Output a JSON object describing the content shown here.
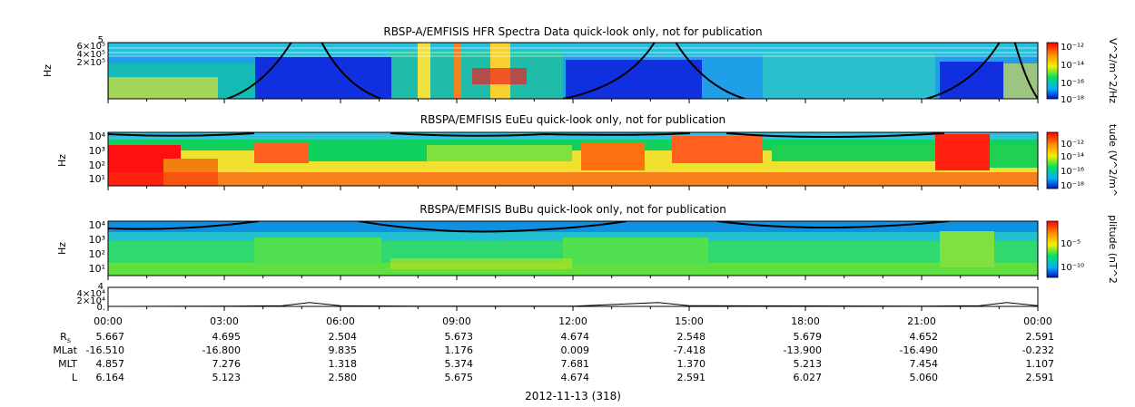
{
  "chart_data": [
    {
      "type": "heatmap",
      "title": "RBSP-A/EMFISIS  HFR Spectra Data quick-look only, not for publication",
      "ylabel": "Hz",
      "ytick_labels": [
        "6×10⁵",
        "4×10⁵",
        "2×10⁵"
      ],
      "ytick_top_label": "5",
      "colorbar_label": "V^2/m^2/Hz",
      "colorbar_ticks": [
        "10⁻¹²",
        "10⁻¹⁴",
        "10⁻¹⁶",
        "10⁻¹⁸"
      ],
      "overlay": "black curve (electron cyclotron frequency trace)"
    },
    {
      "type": "heatmap",
      "title": "RBSPA/EMFISIS  EuEu quick-look only, not for publication",
      "ylabel": "Hz",
      "ytick_labels": [
        "10⁴",
        "10³",
        "10²",
        "10¹"
      ],
      "colorbar_label": "tude (V^2/m^",
      "colorbar_ticks": [
        "10⁻¹²",
        "10⁻¹⁴",
        "10⁻¹⁶",
        "10⁻¹⁸"
      ]
    },
    {
      "type": "heatmap",
      "title": "RBSPA/EMFISIS  BuBu quick-look only, not for publication",
      "ylabel": "Hz",
      "ytick_labels": [
        "10⁴",
        "10³",
        "10²",
        "10¹"
      ],
      "colorbar_label": "plitude (nT^2",
      "colorbar_ticks": [
        "10⁻⁵",
        "10⁻¹⁰"
      ]
    },
    {
      "type": "line",
      "ytick_labels": [
        "4×10⁴",
        "2×10⁴",
        "0."
      ],
      "ytick_top_label": "4",
      "x": [
        0,
        3,
        4.5,
        5.2,
        6,
        8,
        12,
        14.2,
        15,
        21,
        22.5,
        23.2,
        24
      ],
      "y": [
        0,
        400,
        1500,
        9000,
        1500,
        400,
        400,
        9000,
        1500,
        400,
        1500,
        9000,
        1500
      ],
      "ylim": [
        0,
        45000
      ]
    }
  ],
  "time_axis": {
    "labels": [
      "00:00",
      "03:00",
      "06:00",
      "09:00",
      "12:00",
      "15:00",
      "18:00",
      "21:00",
      "00:00"
    ],
    "date_label": "2012-11-13 (318)"
  },
  "ephemeris": [
    {
      "label": "R",
      "sub": "s",
      "values": [
        "5.667",
        "4.695",
        "2.504",
        "5.673",
        "4.674",
        "2.548",
        "5.679",
        "4.652",
        "2.591"
      ]
    },
    {
      "label": "MLat",
      "values": [
        "-16.510",
        "-16.800",
        "9.835",
        "1.176",
        "0.009",
        "-7.418",
        "-13.900",
        "-16.490",
        "-0.232"
      ]
    },
    {
      "label": "MLT",
      "values": [
        "4.857",
        "7.276",
        "1.318",
        "5.374",
        "7.681",
        "1.370",
        "5.213",
        "7.454",
        "1.107"
      ]
    },
    {
      "label": "L",
      "values": [
        "6.164",
        "5.123",
        "2.580",
        "5.675",
        "4.674",
        "2.591",
        "6.027",
        "5.060",
        "2.591"
      ]
    }
  ]
}
